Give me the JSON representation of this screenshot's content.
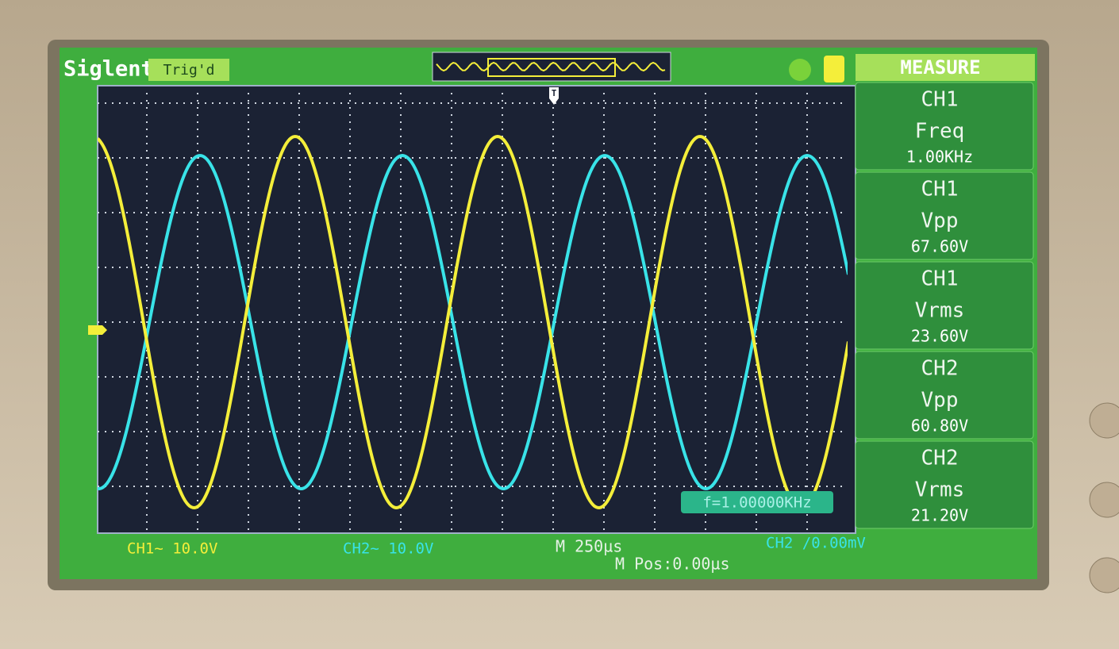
{
  "header": {
    "brand": "Siglent",
    "status": "Trig'd",
    "trigger_marker": "T"
  },
  "measure": {
    "title": "MEASURE",
    "items": [
      {
        "source": "CH1",
        "parameter": "Freq",
        "value": "1.00KHz"
      },
      {
        "source": "CH1",
        "parameter": "Vpp",
        "value": "67.60V"
      },
      {
        "source": "CH1",
        "parameter": "Vrms",
        "value": "23.60V"
      },
      {
        "source": "CH2",
        "parameter": "Vpp",
        "value": "60.80V"
      },
      {
        "source": "CH2",
        "parameter": "Vrms",
        "value": "21.20V"
      }
    ]
  },
  "counter": "f=1.00000KHz",
  "footer": {
    "ch1_scale": "CH1~ 10.0V",
    "ch2_scale": "CH2~ 10.0V",
    "timebase": "M 250µs",
    "position": "M Pos:0.00µs",
    "trigger": "CH2 /0.00mV"
  }
}
